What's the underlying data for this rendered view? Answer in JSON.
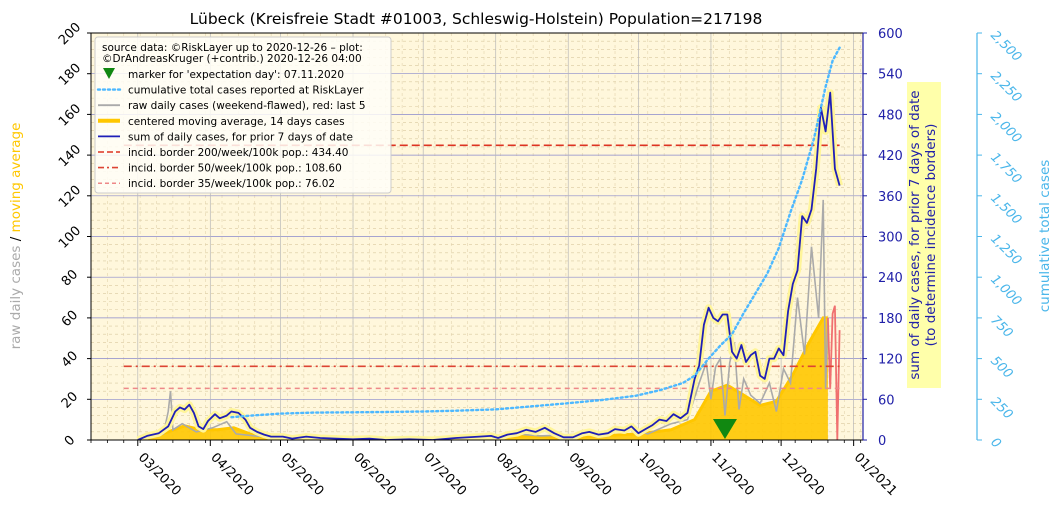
{
  "chart_data": {
    "type": "line",
    "title": "Lübeck (Kreisfreie Stadt #01003, Schleswig-Holstein) Population=217198",
    "x_axis": {
      "type": "date",
      "range": [
        "2020-02-10",
        "2021-01-05"
      ],
      "tick_labels": [
        "03/2020",
        "04/2020",
        "05/2020",
        "06/2020",
        "07/2020",
        "08/2020",
        "09/2020",
        "10/2020",
        "11/2020",
        "12/2020",
        "01/2021"
      ],
      "tick_dates": [
        "2020-03-01",
        "2020-04-01",
        "2020-05-01",
        "2020-06-01",
        "2020-07-01",
        "2020-08-01",
        "2020-09-01",
        "2020-10-01",
        "2020-11-01",
        "2020-12-01",
        "2021-01-01"
      ]
    },
    "y_left": {
      "label_part1": "raw daily cases",
      "label_sep": "/",
      "label_part2": "moving average",
      "range": [
        0,
        200
      ],
      "ticks": [
        "0",
        "20",
        "40",
        "60",
        "80",
        "100",
        "120",
        "140",
        "160",
        "180",
        "200"
      ],
      "ticks_values": [
        0,
        20,
        40,
        60,
        80,
        100,
        120,
        140,
        160,
        180,
        200
      ]
    },
    "y_right1": {
      "label_line1": "sum of daily cases, for prior 7 days of date",
      "label_line2": "(to determine incidence borders)",
      "range": [
        0,
        600
      ],
      "ticks": [
        "0",
        "60",
        "120",
        "180",
        "240",
        "300",
        "360",
        "420",
        "480",
        "540",
        "600"
      ],
      "ticks_values": [
        0,
        60,
        120,
        180,
        240,
        300,
        360,
        420,
        480,
        540,
        600
      ]
    },
    "y_right2": {
      "label": "cumulative total cases",
      "range": [
        0,
        2500
      ],
      "ticks": [
        "0",
        "250",
        "500",
        "750",
        "1,000",
        "1,250",
        "1,500",
        "1,750",
        "2,000",
        "2,250",
        "2,500"
      ],
      "ticks_values": [
        0,
        250,
        500,
        750,
        1000,
        1250,
        1500,
        1750,
        2000,
        2250,
        2500
      ]
    },
    "legend": {
      "placement": "top-left",
      "source_line1": "source data: ©RiskLayer up to 2020-12-26 – plot:",
      "source_line2": "©DrAndreasKruger (+contrib.) 2020-12-26 04:00",
      "entries": [
        {
          "key": "marker",
          "label": "marker for 'expectation day': 07.11.2020"
        },
        {
          "key": "cumulative",
          "label": "cumulative total cases reported at RiskLayer"
        },
        {
          "key": "raw",
          "label": "raw daily cases (weekend-flawed), red: last 5"
        },
        {
          "key": "avg",
          "label": "centered moving average, 14 days cases"
        },
        {
          "key": "sum7",
          "label": "sum of daily cases, for prior 7 days of date"
        },
        {
          "key": "b200",
          "label": "incid. border 200/week/100k pop.: 434.40"
        },
        {
          "key": "b50",
          "label": "incid. border 50/week/100k pop.: 108.60"
        },
        {
          "key": "b35",
          "label": "incid. border 35/week/100k pop.: 76.02"
        }
      ]
    },
    "borders": {
      "b200": 434.4,
      "b50": 108.6,
      "b35": 76.02,
      "start_date": "2020-02-24",
      "end_date": "2020-12-26"
    },
    "expectation_day": "2020-11-07",
    "colors": {
      "cumulative": "#4db8ff",
      "raw": "#aaaaaa",
      "raw_last": "#f07070",
      "avg": "#ffc700",
      "avg_halo": "#fff599",
      "sum7": "#1f1fb8",
      "b200": "#dd3322",
      "b50": "#dd4433",
      "b35": "#ee8888",
      "marker": "#118811",
      "left_label_raw": "#aaaaaa",
      "left_label_avg": "#ffc700",
      "right1": "#2020a8",
      "right2": "#4ab6ea"
    },
    "series": {
      "sum7": {
        "name": "sum of daily cases, for prior 7 days of date",
        "axis": "right1",
        "points": [
          [
            "2020-03-01",
            0
          ],
          [
            "2020-03-05",
            6
          ],
          [
            "2020-03-10",
            10
          ],
          [
            "2020-03-14",
            20
          ],
          [
            "2020-03-17",
            42
          ],
          [
            "2020-03-19",
            48
          ],
          [
            "2020-03-21",
            45
          ],
          [
            "2020-03-23",
            52
          ],
          [
            "2020-03-25",
            40
          ],
          [
            "2020-03-27",
            20
          ],
          [
            "2020-03-29",
            16
          ],
          [
            "2020-03-31",
            28
          ],
          [
            "2020-04-03",
            38
          ],
          [
            "2020-04-05",
            32
          ],
          [
            "2020-04-08",
            36
          ],
          [
            "2020-04-10",
            42
          ],
          [
            "2020-04-13",
            40
          ],
          [
            "2020-04-16",
            30
          ],
          [
            "2020-04-18",
            18
          ],
          [
            "2020-04-21",
            12
          ],
          [
            "2020-04-24",
            8
          ],
          [
            "2020-04-27",
            5
          ],
          [
            "2020-05-02",
            5
          ],
          [
            "2020-05-06",
            2
          ],
          [
            "2020-05-12",
            5
          ],
          [
            "2020-05-18",
            3
          ],
          [
            "2020-05-25",
            2
          ],
          [
            "2020-06-01",
            1
          ],
          [
            "2020-06-08",
            2
          ],
          [
            "2020-06-15",
            0
          ],
          [
            "2020-06-25",
            1
          ],
          [
            "2020-07-05",
            0
          ],
          [
            "2020-07-15",
            3
          ],
          [
            "2020-07-25",
            5
          ],
          [
            "2020-07-30",
            6
          ],
          [
            "2020-08-02",
            3
          ],
          [
            "2020-08-06",
            8
          ],
          [
            "2020-08-10",
            10
          ],
          [
            "2020-08-14",
            15
          ],
          [
            "2020-08-18",
            12
          ],
          [
            "2020-08-22",
            18
          ],
          [
            "2020-08-26",
            10
          ],
          [
            "2020-08-30",
            4
          ],
          [
            "2020-09-03",
            4
          ],
          [
            "2020-09-07",
            10
          ],
          [
            "2020-09-10",
            12
          ],
          [
            "2020-09-14",
            8
          ],
          [
            "2020-09-18",
            10
          ],
          [
            "2020-09-21",
            16
          ],
          [
            "2020-09-25",
            14
          ],
          [
            "2020-09-28",
            20
          ],
          [
            "2020-10-01",
            10
          ],
          [
            "2020-10-04",
            16
          ],
          [
            "2020-10-07",
            22
          ],
          [
            "2020-10-10",
            30
          ],
          [
            "2020-10-13",
            28
          ],
          [
            "2020-10-16",
            38
          ],
          [
            "2020-10-19",
            32
          ],
          [
            "2020-10-22",
            40
          ],
          [
            "2020-10-25",
            90
          ],
          [
            "2020-10-27",
            110
          ],
          [
            "2020-10-29",
            170
          ],
          [
            "2020-10-31",
            195
          ],
          [
            "2020-11-02",
            180
          ],
          [
            "2020-11-04",
            175
          ],
          [
            "2020-11-06",
            185
          ],
          [
            "2020-11-08",
            185
          ],
          [
            "2020-11-10",
            130
          ],
          [
            "2020-11-12",
            120
          ],
          [
            "2020-11-14",
            140
          ],
          [
            "2020-11-16",
            115
          ],
          [
            "2020-11-18",
            125
          ],
          [
            "2020-11-20",
            130
          ],
          [
            "2020-11-22",
            95
          ],
          [
            "2020-11-24",
            90
          ],
          [
            "2020-11-26",
            120
          ],
          [
            "2020-11-28",
            120
          ],
          [
            "2020-11-30",
            135
          ],
          [
            "2020-12-02",
            125
          ],
          [
            "2020-12-04",
            190
          ],
          [
            "2020-12-06",
            230
          ],
          [
            "2020-12-08",
            250
          ],
          [
            "2020-12-10",
            330
          ],
          [
            "2020-12-12",
            320
          ],
          [
            "2020-12-14",
            340
          ],
          [
            "2020-12-16",
            400
          ],
          [
            "2020-12-18",
            490
          ],
          [
            "2020-12-20",
            455
          ],
          [
            "2020-12-22",
            512
          ],
          [
            "2020-12-24",
            400
          ],
          [
            "2020-12-26",
            375
          ]
        ]
      },
      "cumulative": {
        "name": "cumulative total cases reported at RiskLayer",
        "axis": "right2",
        "points": [
          [
            "2020-04-10",
            140
          ],
          [
            "2020-04-20",
            152
          ],
          [
            "2020-05-01",
            162
          ],
          [
            "2020-05-15",
            168
          ],
          [
            "2020-06-01",
            170
          ],
          [
            "2020-06-15",
            172
          ],
          [
            "2020-07-01",
            175
          ],
          [
            "2020-07-15",
            180
          ],
          [
            "2020-08-01",
            188
          ],
          [
            "2020-08-15",
            205
          ],
          [
            "2020-08-31",
            225
          ],
          [
            "2020-09-15",
            245
          ],
          [
            "2020-09-30",
            272
          ],
          [
            "2020-10-10",
            305
          ],
          [
            "2020-10-20",
            350
          ],
          [
            "2020-10-25",
            395
          ],
          [
            "2020-10-31",
            500
          ],
          [
            "2020-11-05",
            580
          ],
          [
            "2020-11-10",
            650
          ],
          [
            "2020-11-15",
            780
          ],
          [
            "2020-11-20",
            900
          ],
          [
            "2020-11-25",
            1020
          ],
          [
            "2020-11-30",
            1180
          ],
          [
            "2020-12-05",
            1400
          ],
          [
            "2020-12-10",
            1600
          ],
          [
            "2020-12-15",
            1850
          ],
          [
            "2020-12-20",
            2170
          ],
          [
            "2020-12-23",
            2330
          ],
          [
            "2020-12-26",
            2410
          ]
        ]
      },
      "avg": {
        "name": "centered moving average, 14 days cases",
        "axis": "left",
        "points": [
          [
            "2020-03-01",
            0
          ],
          [
            "2020-03-07",
            2
          ],
          [
            "2020-03-14",
            4
          ],
          [
            "2020-03-21",
            7
          ],
          [
            "2020-03-28",
            5
          ],
          [
            "2020-04-04",
            5
          ],
          [
            "2020-04-11",
            6
          ],
          [
            "2020-04-18",
            3
          ],
          [
            "2020-04-25",
            1
          ],
          [
            "2020-05-05",
            0.5
          ],
          [
            "2020-06-01",
            0.2
          ],
          [
            "2020-07-01",
            0.3
          ],
          [
            "2020-08-01",
            1
          ],
          [
            "2020-08-15",
            2
          ],
          [
            "2020-09-01",
            1
          ],
          [
            "2020-09-15",
            2
          ],
          [
            "2020-10-01",
            3
          ],
          [
            "2020-10-15",
            5
          ],
          [
            "2020-10-25",
            10
          ],
          [
            "2020-11-01",
            24
          ],
          [
            "2020-11-08",
            27
          ],
          [
            "2020-11-15",
            22
          ],
          [
            "2020-11-22",
            17
          ],
          [
            "2020-11-29",
            19
          ],
          [
            "2020-12-06",
            32
          ],
          [
            "2020-12-13",
            48
          ],
          [
            "2020-12-19",
            60
          ],
          [
            "2020-12-21",
            60
          ]
        ]
      },
      "raw": {
        "name": "raw daily cases (weekend-flawed), red: last 5",
        "axis": "left",
        "points": [
          [
            "2020-03-01",
            0
          ],
          [
            "2020-03-12",
            3
          ],
          [
            "2020-03-14",
            14
          ],
          [
            "2020-03-15",
            24
          ],
          [
            "2020-03-16",
            5
          ],
          [
            "2020-03-20",
            8
          ],
          [
            "2020-03-26",
            4
          ],
          [
            "2020-04-02",
            6
          ],
          [
            "2020-04-08",
            9
          ],
          [
            "2020-04-12",
            3
          ],
          [
            "2020-04-20",
            2
          ],
          [
            "2020-05-01",
            1
          ],
          [
            "2020-06-01",
            0
          ],
          [
            "2020-07-01",
            1
          ],
          [
            "2020-08-01",
            1
          ],
          [
            "2020-08-10",
            3
          ],
          [
            "2020-08-20",
            2
          ],
          [
            "2020-09-10",
            3
          ],
          [
            "2020-09-25",
            6
          ],
          [
            "2020-10-05",
            3
          ],
          [
            "2020-10-15",
            8
          ],
          [
            "2020-10-22",
            10
          ],
          [
            "2020-10-27",
            28
          ],
          [
            "2020-10-30",
            38
          ],
          [
            "2020-11-01",
            20
          ],
          [
            "2020-11-03",
            36
          ],
          [
            "2020-11-05",
            40
          ],
          [
            "2020-11-07",
            12
          ],
          [
            "2020-11-09",
            38
          ],
          [
            "2020-11-11",
            48
          ],
          [
            "2020-11-13",
            15
          ],
          [
            "2020-11-15",
            30
          ],
          [
            "2020-11-18",
            22
          ],
          [
            "2020-11-22",
            18
          ],
          [
            "2020-11-26",
            28
          ],
          [
            "2020-11-29",
            14
          ],
          [
            "2020-12-02",
            35
          ],
          [
            "2020-12-05",
            28
          ],
          [
            "2020-12-08",
            70
          ],
          [
            "2020-12-11",
            42
          ],
          [
            "2020-12-14",
            95
          ],
          [
            "2020-12-17",
            60
          ],
          [
            "2020-12-19",
            118
          ],
          [
            "2020-12-20",
            25
          ],
          [
            "2020-12-21",
            60
          ]
        ],
        "last_points": [
          [
            "2020-12-21",
            60
          ],
          [
            "2020-12-22",
            25
          ],
          [
            "2020-12-23",
            62
          ],
          [
            "2020-12-24",
            66
          ],
          [
            "2020-12-25",
            0
          ],
          [
            "2020-12-26",
            54
          ]
        ]
      }
    }
  }
}
